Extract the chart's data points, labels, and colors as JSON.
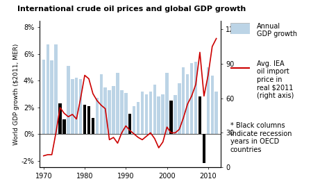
{
  "title": "International crude oil prices and global GDP growth",
  "ylabel_left": "World GDP growth ($2011, MER)",
  "years": [
    1970,
    1971,
    1972,
    1973,
    1974,
    1975,
    1976,
    1977,
    1978,
    1979,
    1980,
    1981,
    1982,
    1983,
    1984,
    1985,
    1986,
    1987,
    1988,
    1989,
    1990,
    1991,
    1992,
    1993,
    1994,
    1995,
    1996,
    1997,
    1998,
    1999,
    2000,
    2001,
    2002,
    2003,
    2004,
    2005,
    2006,
    2007,
    2008,
    2009,
    2010,
    2011,
    2012
  ],
  "gdp_growth": [
    5.6,
    6.7,
    5.5,
    6.7,
    2.3,
    1.1,
    5.1,
    4.1,
    4.2,
    4.1,
    2.2,
    2.1,
    1.2,
    2.7,
    4.5,
    3.5,
    3.3,
    3.6,
    4.6,
    3.3,
    3.1,
    1.5,
    2.1,
    2.4,
    3.2,
    3.0,
    3.2,
    3.7,
    2.8,
    3.0,
    4.6,
    2.5,
    2.9,
    3.8,
    5.0,
    4.5,
    5.3,
    5.4,
    2.8,
    -2.2,
    5.0,
    4.4,
    3.2
  ],
  "recession_years": [
    1974,
    1975,
    1980,
    1981,
    1982,
    1991,
    2001,
    2008,
    2009
  ],
  "oil_price_years": [
    1970,
    1971,
    1972,
    1973,
    1974,
    1975,
    1976,
    1977,
    1978,
    1979,
    1980,
    1981,
    1982,
    1983,
    1984,
    1985,
    1986,
    1987,
    1988,
    1989,
    1990,
    1991,
    1992,
    1993,
    1994,
    1995,
    1996,
    1997,
    1998,
    1999,
    2000,
    2001,
    2002,
    2003,
    2004,
    2005,
    2006,
    2007,
    2008,
    2009,
    2010,
    2011,
    2012
  ],
  "oil_price": [
    10,
    11,
    11,
    30,
    52,
    47,
    44,
    46,
    42,
    60,
    80,
    77,
    64,
    58,
    54,
    51,
    24,
    26,
    21,
    30,
    36,
    32,
    29,
    26,
    24,
    27,
    30,
    25,
    17,
    22,
    35,
    30,
    30,
    33,
    43,
    55,
    62,
    72,
    100,
    62,
    80,
    105,
    112
  ],
  "bar_color": "#bcd4e6",
  "recession_bar_color": "#000000",
  "line_color": "#cc0000",
  "ylim_left": [
    -0.025,
    0.085
  ],
  "ylim_right": [
    0,
    127.5
  ],
  "yticks_left": [
    -0.02,
    0.0,
    0.02,
    0.04,
    0.06,
    0.08
  ],
  "ytick_labels_left": [
    "-2%",
    "0%",
    "2%",
    "4%",
    "6%",
    "8%"
  ],
  "yticks_right": [
    0,
    30,
    60,
    90,
    120
  ],
  "xlim": [
    1969,
    2013
  ],
  "xticks": [
    1970,
    1980,
    1990,
    2000,
    2010
  ],
  "legend_gdp_label": "Annual\nGDP growth",
  "legend_oil_label": "Avg. IEA\noil import\nprice in\nreal $2011\n(right axis)",
  "legend_recession_label": "* Black columns\nindicate recession\nyears in OECD\ncountries",
  "title_fontsize": 8,
  "label_fontsize": 6.5,
  "tick_fontsize": 7,
  "legend_fontsize": 7
}
